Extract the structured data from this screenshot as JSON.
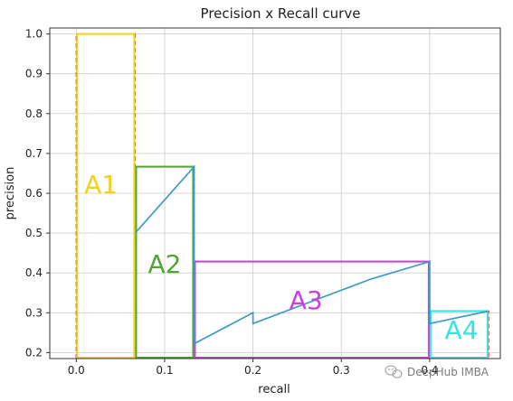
{
  "chart_data": {
    "type": "line",
    "title": "Precision x Recall curve",
    "xlabel": "recall",
    "ylabel": "precision",
    "xlim": [
      -0.03,
      0.48
    ],
    "ylim": [
      0.185,
      1.015
    ],
    "grid": true,
    "x_ticks": [
      {
        "value": 0.0,
        "label": "0.0"
      },
      {
        "value": 0.1,
        "label": "0.1"
      },
      {
        "value": 0.2,
        "label": "0.2"
      },
      {
        "value": 0.3,
        "label": "0.3"
      },
      {
        "value": 0.4,
        "label": "0.4"
      }
    ],
    "y_ticks": [
      {
        "value": 0.2,
        "label": "0.2"
      },
      {
        "value": 0.3,
        "label": "0.3"
      },
      {
        "value": 0.4,
        "label": "0.4"
      },
      {
        "value": 0.5,
        "label": "0.5"
      },
      {
        "value": 0.6,
        "label": "0.6"
      },
      {
        "value": 0.7,
        "label": "0.7"
      },
      {
        "value": 0.8,
        "label": "0.8"
      },
      {
        "value": 0.9,
        "label": "0.9"
      },
      {
        "value": 1.0,
        "label": "1.0"
      }
    ],
    "series": [
      {
        "color": "#3d9ac8",
        "x": [
          0.0667,
          0.1333,
          0.1333,
          0.2,
          0.2,
          0.3333,
          0.4,
          0.4,
          0.4667
        ],
        "y": [
          0.5,
          0.6667,
          0.2222,
          0.3,
          0.2727,
          0.3846,
          0.4286,
          0.2727,
          0.3043
        ]
      }
    ],
    "interpolated": {
      "color": "#e8493f",
      "x": [
        0.0,
        0.0,
        0.0667,
        0.0667,
        0.1333,
        0.1333,
        0.4,
        0.4,
        0.4667,
        0.4667
      ],
      "y": [
        0.185,
        1.0,
        1.0,
        0.6667,
        0.6667,
        0.4286,
        0.4286,
        0.3043,
        0.3043,
        0.185
      ]
    },
    "regions": [
      {
        "label": "A1",
        "x0": 0.0,
        "x1": 0.0667,
        "y0": 0.185,
        "y1": 1.0,
        "color": "#f0d21c",
        "label_x": 0.028,
        "label_y": 0.6
      },
      {
        "label": "A2",
        "x0": 0.0667,
        "x1": 0.1333,
        "y0": 0.185,
        "y1": 0.6667,
        "color": "#4ea632",
        "label_x": 0.1,
        "label_y": 0.4
      },
      {
        "label": "A3",
        "x0": 0.1333,
        "x1": 0.4,
        "y0": 0.185,
        "y1": 0.4286,
        "color": "#cc3ee0",
        "label_x": 0.26,
        "label_y": 0.31
      },
      {
        "label": "A4",
        "x0": 0.4,
        "x1": 0.4667,
        "y0": 0.185,
        "y1": 0.3043,
        "color": "#33e6e6",
        "label_x": 0.436,
        "label_y": 0.235
      }
    ]
  },
  "watermark": {
    "text": "DeepHub IMBA",
    "icon": "wechat-logo-icon"
  }
}
